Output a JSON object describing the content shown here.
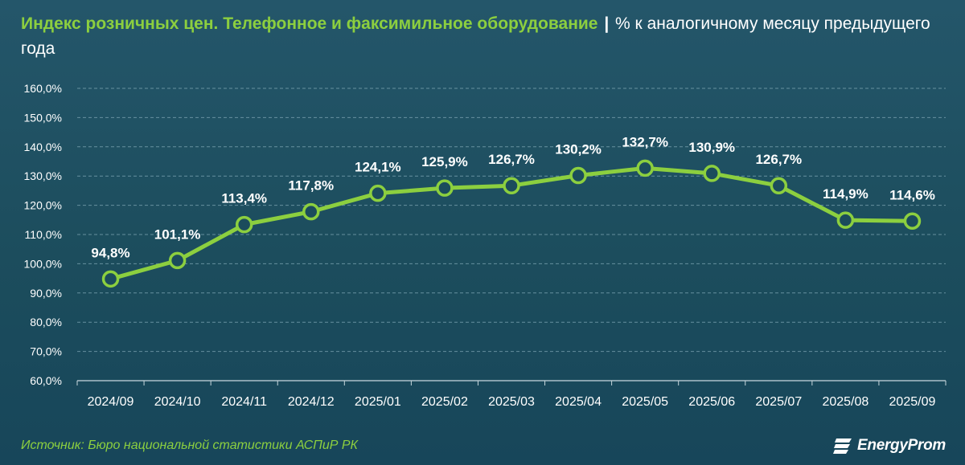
{
  "header": {
    "title_highlight": "Индекс розничных цен. Телефонное и факсимильное оборудование",
    "separator": "|",
    "title_rest": "% к аналогичному месяцу предыдущего года"
  },
  "footer": {
    "source": "Источник: Бюро национальной статистики АСПиР РК",
    "logo_text": "EnergyProm"
  },
  "colors": {
    "line": "#8ccf3f",
    "marker_fill": "#1b4c5c",
    "grid": "#7fa7b4",
    "text": "#ffffff"
  },
  "chart_data": {
    "type": "line",
    "categories": [
      "2024/09",
      "2024/10",
      "2024/11",
      "2024/12",
      "2025/01",
      "2025/02",
      "2025/03",
      "2025/04",
      "2025/05",
      "2025/06",
      "2025/07",
      "2025/08",
      "2025/09"
    ],
    "series": [
      {
        "values": [
          94.8,
          101.1,
          113.4,
          117.8,
          124.1,
          125.9,
          126.7,
          130.2,
          132.7,
          130.9,
          126.7,
          114.9,
          114.6
        ],
        "labels": [
          "94,8%",
          "101,1%",
          "113,4%",
          "117,8%",
          "124,1%",
          "125,9%",
          "126,7%",
          "130,2%",
          "132,7%",
          "130,9%",
          "126,7%",
          "114,9%",
          "114,6%"
        ]
      }
    ],
    "ylim": [
      60,
      160
    ],
    "yticks": [
      60,
      70,
      80,
      90,
      100,
      110,
      120,
      130,
      140,
      150,
      160
    ],
    "ytick_labels": [
      "60,0%",
      "70,0%",
      "80,0%",
      "90,0%",
      "100,0%",
      "110,0%",
      "120,0%",
      "130,0%",
      "140,0%",
      "150,0%",
      "160,0%"
    ],
    "grid": true,
    "legend": "none"
  }
}
